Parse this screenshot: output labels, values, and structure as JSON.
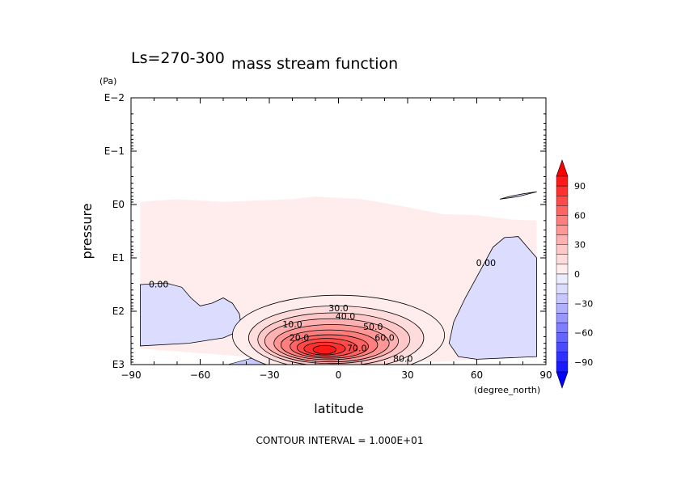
{
  "chart_data": {
    "type": "heatmap",
    "title": "mass stream function",
    "subtitle": "Ls=270-300",
    "xlabel": "latitude",
    "xunit": "(degree_north)",
    "ylabel": "pressure",
    "yunit": "(Pa)",
    "xlim": [
      -90,
      90
    ],
    "ylim_log10": [
      -2,
      3
    ],
    "y_log_scale": true,
    "x_ticks": [
      "−90",
      "−60",
      "−30",
      "0",
      "30",
      "60",
      "90"
    ],
    "x_tick_values": [
      -90,
      -60,
      -30,
      0,
      30,
      60,
      90
    ],
    "y_ticks": [
      "E−2",
      "E−1",
      "E0",
      "E1",
      "E2",
      "E3"
    ],
    "y_tick_values": [
      -2,
      -1,
      0,
      1,
      2,
      3
    ],
    "footer": "CONTOUR INTERVAL = 1.000E+01",
    "contour_interval": 10,
    "contour_labels": [
      {
        "text": "0.00",
        "lat": -78,
        "logp": 1.55
      },
      {
        "text": "0.00",
        "lat": 64,
        "logp": 1.15
      },
      {
        "text": "10.0",
        "lat": -20,
        "logp": 2.3
      },
      {
        "text": "20.0",
        "lat": -17,
        "logp": 2.55
      },
      {
        "text": "30.0",
        "lat": 0,
        "logp": 2.0
      },
      {
        "text": "40.0",
        "lat": 3,
        "logp": 2.15
      },
      {
        "text": "50.0",
        "lat": 15,
        "logp": 2.35
      },
      {
        "text": "60.0",
        "lat": 20,
        "logp": 2.55
      },
      {
        "text": "70.0",
        "lat": 8,
        "logp": 2.75
      },
      {
        "text": "80.0",
        "lat": 28,
        "logp": 2.95
      }
    ],
    "colorbar": {
      "ticks": [
        "90",
        "60",
        "30",
        "0",
        "−30",
        "−60",
        "−90"
      ],
      "tick_values": [
        90,
        60,
        30,
        0,
        -30,
        -60,
        -90
      ],
      "levels": [
        110,
        100,
        90,
        80,
        70,
        60,
        50,
        40,
        30,
        20,
        10,
        0,
        -10,
        -20,
        -30,
        -40,
        -50,
        -60,
        -70,
        -80,
        -90,
        -100,
        -110
      ],
      "positive_colors": [
        "#ff0000",
        "#ff1a1a",
        "#ff3030",
        "#ff4a4a",
        "#ff6464",
        "#ff7e7e",
        "#ff9797",
        "#ffb0b0",
        "#ffc8c8",
        "#ffdcdc",
        "#ffecec"
      ],
      "negative_colors": [
        "#ececff",
        "#dcdcff",
        "#c8c8ff",
        "#b0b0ff",
        "#9797ff",
        "#7e7eff",
        "#6464ff",
        "#4a4aff",
        "#3030ff",
        "#1a1aff",
        "#0000ff"
      ]
    },
    "fills": {
      "background_positive": "#ffecec",
      "negative_region": "#dcdcff"
    }
  }
}
